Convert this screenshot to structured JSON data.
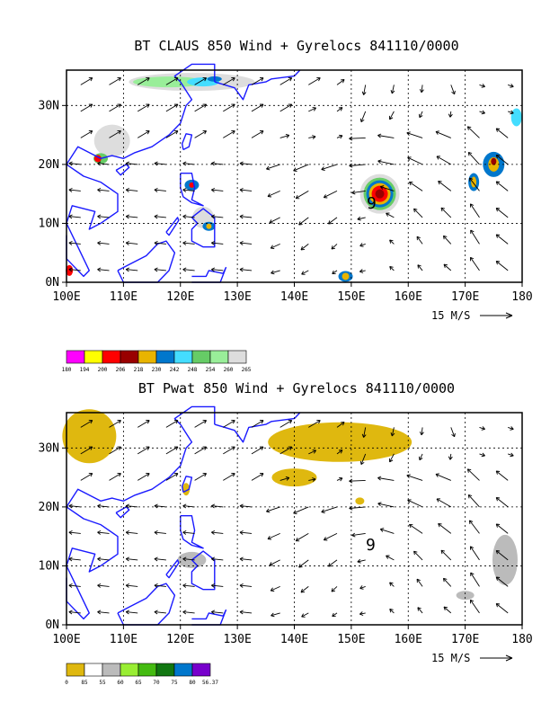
{
  "charts": [
    {
      "title": "BT CLAUS 850 Wind + Gyrelocs 841110/0000",
      "type": "map-vector",
      "x_ticks": [
        "100E",
        "110E",
        "120E",
        "130E",
        "140E",
        "150E",
        "160E",
        "170E",
        "180"
      ],
      "y_ticks": [
        "0N",
        "10N",
        "20N",
        "30N"
      ],
      "x_range": [
        100,
        180
      ],
      "y_range": [
        0,
        36
      ],
      "vector_label": "15 M/S",
      "storm_marker": "9",
      "legend_values": [
        "180",
        "194",
        "200",
        "206",
        "218",
        "230",
        "242",
        "248",
        "254",
        "260",
        "265"
      ],
      "legend_colors": [
        "#ff00ff",
        "#ffff00",
        "#ff0000",
        "#990000",
        "#e8b400",
        "#0077cc",
        "#44ddff",
        "#66cc66",
        "#99ee99",
        "#dddddd"
      ]
    },
    {
      "title": "BT Pwat 850 Wind + Gyrelocs 841110/0000",
      "type": "map-vector",
      "x_ticks": [
        "100E",
        "110E",
        "120E",
        "130E",
        "140E",
        "150E",
        "160E",
        "170E",
        "180"
      ],
      "y_ticks": [
        "0N",
        "10N",
        "20N",
        "30N"
      ],
      "x_range": [
        100,
        180
      ],
      "y_range": [
        0,
        36
      ],
      "vector_label": "15 M/S",
      "storm_marker": "9",
      "legend_values": [
        "0",
        "85",
        "55",
        "60",
        "65",
        "70",
        "75",
        "80",
        "56.37"
      ],
      "legend_colors": [
        "#dfb80f",
        "#ffffff",
        "#bbbbbb",
        "#99ee33",
        "#44bb11",
        "#117711",
        "#0077cc",
        "#7700cc"
      ]
    }
  ],
  "chart_data": [
    {
      "type": "heatmap",
      "title": "BT CLAUS 850 Wind + Gyrelocs 841110/0000",
      "xlabel": "",
      "ylabel": "",
      "xlim": [
        100,
        180
      ],
      "ylim": [
        0,
        36
      ],
      "x_ticks": [
        "100E",
        "110E",
        "120E",
        "130E",
        "140E",
        "150E",
        "160E",
        "170E",
        "180"
      ],
      "y_ticks": [
        "0N",
        "10N",
        "20N",
        "30N"
      ],
      "vector_reference": "15 M/S",
      "storm_label": "9",
      "storm_location": [
        155,
        14
      ],
      "colorbar_levels": [
        "180",
        "194",
        "200",
        "206",
        "218",
        "230",
        "242",
        "248",
        "254",
        "260",
        "265"
      ]
    },
    {
      "type": "heatmap",
      "title": "BT Pwat 850 Wind + Gyrelocs 841110/0000",
      "xlabel": "",
      "ylabel": "",
      "xlim": [
        100,
        180
      ],
      "ylim": [
        0,
        36
      ],
      "x_ticks": [
        "100E",
        "110E",
        "120E",
        "130E",
        "140E",
        "150E",
        "160E",
        "170E",
        "180"
      ],
      "y_ticks": [
        "0N",
        "10N",
        "20N",
        "30N"
      ],
      "vector_reference": "15 M/S",
      "storm_label": "9",
      "storm_location": [
        154,
        13
      ],
      "colorbar_levels": [
        "0",
        "85",
        "55",
        "60",
        "65",
        "70",
        "75",
        "80",
        "56.37"
      ]
    }
  ]
}
